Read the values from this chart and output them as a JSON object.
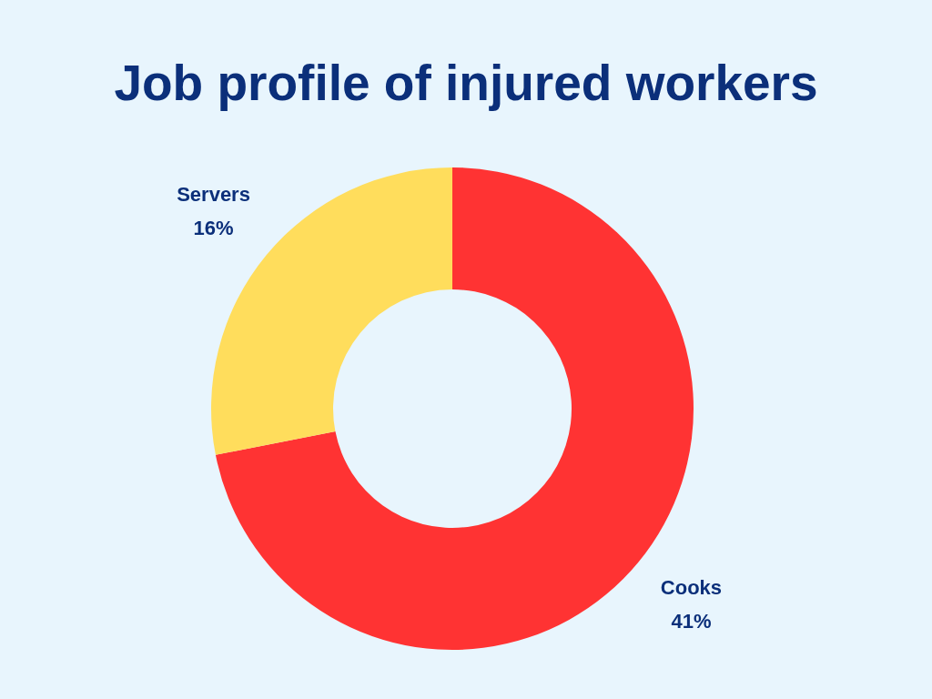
{
  "chart_data": {
    "type": "donut",
    "title": "Job profile of injured workers",
    "categories": [
      "Cooks",
      "Servers"
    ],
    "values": [
      41,
      16
    ],
    "colors": [
      "#ff3333",
      "#ffdd5c"
    ],
    "value_labels": [
      "41%",
      "16%"
    ]
  }
}
